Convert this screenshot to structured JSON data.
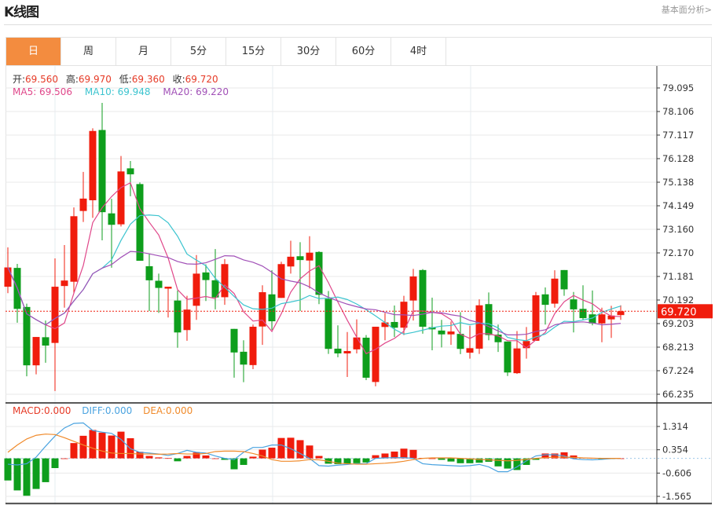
{
  "header": {
    "title": "K线图",
    "link": "基本面分析>"
  },
  "tabs": [
    {
      "label": "日",
      "active": true
    },
    {
      "label": "周"
    },
    {
      "label": "月"
    },
    {
      "label": "5分"
    },
    {
      "label": "15分"
    },
    {
      "label": "30分"
    },
    {
      "label": "60分"
    },
    {
      "label": "4时"
    }
  ],
  "ohlc_info": {
    "open_label": "开:",
    "open": "69.560",
    "high_label": "高:",
    "high": "69.970",
    "low_label": "低:",
    "low": "69.360",
    "close_label": "收:",
    "close": "69.720"
  },
  "ma_info": {
    "ma5": "MA5: 69.506",
    "ma10": "MA10: 69.948",
    "ma20": "MA20: 69.220"
  },
  "macd_info": {
    "macd": "MACD:0.000",
    "diff": "DIFF:0.000",
    "dea": "DEA:0.000"
  },
  "colors": {
    "up": "#f01c0c",
    "down": "#0e9e1c",
    "ma5": "#e0478a",
    "ma10": "#3cc4cf",
    "ma20": "#a150b7",
    "diff": "#4aa3e0",
    "dea": "#f08a2a",
    "accent": "#f38c3f"
  },
  "chart_data": [
    {
      "type": "candlestick",
      "y_ticks": [
        "79.095",
        "78.106",
        "77.117",
        "76.128",
        "75.138",
        "74.149",
        "73.160",
        "72.170",
        "71.181",
        "70.192",
        "69.203",
        "68.213",
        "67.224",
        "66.235"
      ],
      "ylim": [
        66.235,
        79.095
      ],
      "last_price": "69.720",
      "candles": [
        [
          70.75,
          71.56,
          72.4,
          70.48
        ],
        [
          71.54,
          69.82,
          71.71,
          69.24
        ],
        [
          69.9,
          67.45,
          70.04,
          66.99
        ],
        [
          67.45,
          68.64,
          68.64,
          67.07
        ],
        [
          68.63,
          68.28,
          69.33,
          67.56
        ],
        [
          68.39,
          70.75,
          71.94,
          66.37
        ],
        [
          70.78,
          71.01,
          72.5,
          69.87
        ],
        [
          70.96,
          73.71,
          74.08,
          70.48
        ],
        [
          73.93,
          74.45,
          75.57,
          73.47
        ],
        [
          74.38,
          77.29,
          77.4,
          73.64
        ],
        [
          77.33,
          73.88,
          78.47,
          72.7
        ],
        [
          73.83,
          73.35,
          74.44,
          71.55
        ],
        [
          73.37,
          75.59,
          76.24,
          73.28
        ],
        [
          75.72,
          75.47,
          76.03,
          74.55
        ],
        [
          75.06,
          71.84,
          75.13,
          71.84
        ],
        [
          71.61,
          71.02,
          72.13,
          69.73
        ],
        [
          71.0,
          70.7,
          71.3,
          69.65
        ],
        [
          70.67,
          70.75,
          70.75,
          69.46
        ],
        [
          70.17,
          68.83,
          70.59,
          68.19
        ],
        [
          68.93,
          69.79,
          70.37,
          68.48
        ],
        [
          69.95,
          71.3,
          72.08,
          69.36
        ],
        [
          71.35,
          71.03,
          71.69,
          70.15
        ],
        [
          71.02,
          70.3,
          72.33,
          69.8
        ],
        [
          70.31,
          71.7,
          71.91,
          69.99
        ],
        [
          68.98,
          67.99,
          68.98,
          66.93
        ],
        [
          68.02,
          67.48,
          68.5,
          66.74
        ],
        [
          67.46,
          69.07,
          69.16,
          67.29
        ],
        [
          69.08,
          70.52,
          70.81,
          68.31
        ],
        [
          70.43,
          69.3,
          71.44,
          68.94
        ],
        [
          70.28,
          71.7,
          71.8,
          70.28
        ],
        [
          71.6,
          72.01,
          72.68,
          71.3
        ],
        [
          72.03,
          71.87,
          72.62,
          69.73
        ],
        [
          71.85,
          72.18,
          72.87,
          70.68
        ],
        [
          72.21,
          70.41,
          72.24,
          70.02
        ],
        [
          70.24,
          68.14,
          70.57,
          67.93
        ],
        [
          68.15,
          67.95,
          69.13,
          67.79
        ],
        [
          67.95,
          68.05,
          68.85,
          66.96
        ],
        [
          68.12,
          68.62,
          69.38,
          67.95
        ],
        [
          68.61,
          66.93,
          68.72,
          66.83
        ],
        [
          66.75,
          69.07,
          69.07,
          66.57
        ],
        [
          69.06,
          69.25,
          69.65,
          68.5
        ],
        [
          69.27,
          69.03,
          69.96,
          68.64
        ],
        [
          69.03,
          70.12,
          70.37,
          68.72
        ],
        [
          70.17,
          71.18,
          71.5,
          69.33
        ],
        [
          71.45,
          69.07,
          71.49,
          68.78
        ],
        [
          69.05,
          68.96,
          70.29,
          68.08
        ],
        [
          68.91,
          68.75,
          69.36,
          68.2
        ],
        [
          68.75,
          68.87,
          69.29,
          68.31
        ],
        [
          68.77,
          68.14,
          69.68,
          67.92
        ],
        [
          67.98,
          68.17,
          69.11,
          67.73
        ],
        [
          68.15,
          69.97,
          70.22,
          67.93
        ],
        [
          70.02,
          68.72,
          70.51,
          68.5
        ],
        [
          68.74,
          68.42,
          69.16,
          68.01
        ],
        [
          68.45,
          67.15,
          68.45,
          67.0
        ],
        [
          67.12,
          68.16,
          68.89,
          67.09
        ],
        [
          68.17,
          68.47,
          69.06,
          67.73
        ],
        [
          68.48,
          70.39,
          70.53,
          68.48
        ],
        [
          70.43,
          69.99,
          70.72,
          69.16
        ],
        [
          70.04,
          71.09,
          71.44,
          69.87
        ],
        [
          71.45,
          70.64,
          71.45,
          70.37
        ],
        [
          70.22,
          69.8,
          70.53,
          68.83
        ],
        [
          69.82,
          69.43,
          70.81,
          69.36
        ],
        [
          69.59,
          69.21,
          70.59,
          69.13
        ],
        [
          69.21,
          69.59,
          69.87,
          68.42
        ],
        [
          69.38,
          69.54,
          69.95,
          68.6
        ],
        [
          69.56,
          69.72,
          69.97,
          69.36
        ]
      ]
    },
    {
      "type": "macd",
      "y_ticks": [
        "1.314",
        "0.354",
        "-0.606",
        "-1.565"
      ],
      "ylim": [
        -1.565,
        1.314
      ],
      "histogram": [
        -0.91,
        -1.32,
        -1.54,
        -1.26,
        -0.98,
        -0.4,
        0.0,
        0.63,
        0.93,
        1.17,
        1.06,
        0.94,
        1.1,
        0.83,
        0.27,
        0.1,
        0.04,
        0.01,
        -0.12,
        0.1,
        0.24,
        0.12,
        0.0,
        -0.06,
        -0.45,
        -0.27,
        0.07,
        0.36,
        0.44,
        0.84,
        0.85,
        0.75,
        0.53,
        0.1,
        -0.22,
        -0.24,
        -0.22,
        -0.2,
        -0.17,
        0.13,
        0.2,
        0.28,
        0.4,
        0.35,
        0.02,
        0.0,
        -0.06,
        -0.13,
        -0.2,
        -0.2,
        -0.18,
        -0.14,
        -0.33,
        -0.42,
        -0.48,
        -0.27,
        -0.06,
        0.2,
        0.2,
        0.25,
        0.12,
        0.03,
        0.02,
        -0.04,
        -0.03,
        0.0
      ],
      "diff": [
        -0.24,
        -0.27,
        -0.22,
        0.05,
        0.5,
        0.92,
        1.25,
        1.44,
        1.46,
        1.15,
        1.08,
        1.03,
        0.78,
        0.4,
        0.25,
        0.22,
        0.18,
        0.12,
        0.2,
        0.33,
        0.25,
        0.22,
        0.1,
        0.0,
        -0.05,
        0.25,
        0.45,
        0.45,
        0.55,
        0.55,
        0.4,
        0.2,
        0.0,
        -0.3,
        -0.32,
        -0.28,
        -0.25,
        -0.22,
        -0.22,
        0.0,
        0.02,
        0.03,
        0.03,
        0.0,
        -0.22,
        -0.26,
        -0.28,
        -0.3,
        -0.32,
        -0.3,
        -0.25,
        -0.35,
        -0.55,
        -0.55,
        -0.35,
        -0.1,
        0.1,
        0.15,
        0.15,
        0.1,
        -0.02,
        -0.05,
        -0.06,
        -0.04,
        -0.01,
        0.0
      ],
      "dea": [
        0.25,
        0.55,
        0.8,
        0.95,
        1.0,
        0.98,
        0.85,
        0.7,
        0.55,
        0.42,
        0.3,
        0.22,
        0.2,
        0.2,
        0.18,
        0.18,
        0.17,
        0.18,
        0.2,
        0.18,
        0.18,
        0.2,
        0.28,
        0.3,
        0.3,
        0.28,
        0.2,
        0.1,
        -0.05,
        -0.12,
        -0.12,
        -0.1,
        -0.05,
        -0.06,
        -0.12,
        -0.2,
        -0.22,
        -0.24,
        -0.24,
        -0.22,
        -0.2,
        -0.17,
        -0.12,
        -0.05,
        0.0,
        0.02,
        0.02,
        0.02,
        0.0,
        -0.02,
        -0.04,
        -0.06,
        -0.08,
        -0.1,
        -0.08,
        -0.04,
        0.0,
        0.03,
        0.05,
        0.05,
        0.04,
        0.02,
        0.01,
        0.0,
        0.0,
        0.0
      ]
    }
  ]
}
